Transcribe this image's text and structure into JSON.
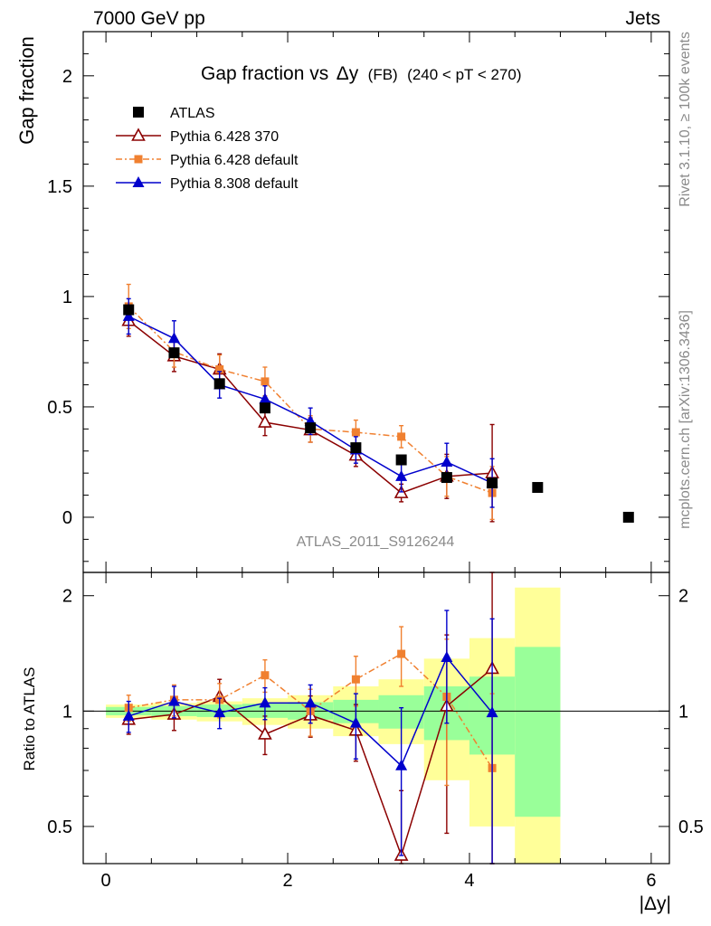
{
  "header": {
    "left": "7000 GeV pp",
    "right": "Jets"
  },
  "side_text": {
    "rivet": "Rivet 3.1.10, ≥ 100k events",
    "mcplots": "mcplots.cern.ch [arXiv:1306.3436]"
  },
  "watermark": "ATLAS_2011_S9126244",
  "chart_data": {
    "type": "scatter",
    "title_main": "Gap fraction vs",
    "title_delta": "Δy",
    "title_fb": "(FB)",
    "title_range": "(240 < pT < 270)",
    "ylabel": "Gap fraction",
    "ratio_ylabel": "Ratio to ATLAS",
    "xlabel": "|Δy|",
    "xlim": [
      -0.25,
      6.2
    ],
    "ylim": [
      -0.25,
      2.2
    ],
    "ratio_ylim": [
      0.4,
      2.3
    ],
    "ratio_log": true,
    "x_ticks": [
      "0",
      "2",
      "4",
      "6"
    ],
    "y_ticks": [
      "0",
      "0.5",
      "1",
      "1.5",
      "2"
    ],
    "ratio_ticks": [
      "0.5",
      "1",
      "2"
    ],
    "legend_position": "top-left",
    "x": [
      0.25,
      0.75,
      1.25,
      1.75,
      2.25,
      2.75,
      3.25,
      3.75,
      4.25,
      4.75,
      5.75
    ],
    "series": [
      {
        "name": "ATLAS",
        "color": "#000000",
        "marker": "square",
        "values": [
          0.94,
          0.745,
          0.605,
          0.495,
          0.405,
          0.315,
          0.26,
          0.18,
          0.155,
          0.135,
          0.0
        ]
      },
      {
        "name": "Pythia 6.428 370",
        "color": "#8b0000",
        "marker": "triangle-open",
        "values": [
          0.89,
          0.73,
          0.67,
          0.43,
          0.395,
          0.28,
          0.11,
          0.185,
          0.2
        ],
        "errors": [
          0.07,
          0.07,
          0.07,
          0.06,
          0.055,
          0.05,
          0.04,
          0.1,
          0.22
        ],
        "ratio": [
          0.95,
          0.98,
          1.09,
          0.87,
          0.975,
          0.89,
          0.42,
          1.03,
          1.29
        ],
        "ratio_errors": [
          0.08,
          0.09,
          0.12,
          0.1,
          0.12,
          0.15,
          0.2,
          0.55,
          1.1
        ]
      },
      {
        "name": "Pythia 6.428 default",
        "color": "#f08030",
        "marker": "square-small",
        "values": [
          0.955,
          0.75,
          0.67,
          0.615,
          0.4,
          0.385,
          0.365,
          0.185,
          0.11
        ],
        "errors": [
          0.1,
          0.07,
          0.065,
          0.065,
          0.06,
          0.055,
          0.05,
          0.09,
          0.12
        ],
        "ratio": [
          1.02,
          1.07,
          1.07,
          1.24,
          1.0,
          1.21,
          1.41,
          1.09,
          0.71
        ],
        "ratio_errors": [
          0.08,
          0.1,
          0.11,
          0.12,
          0.14,
          0.18,
          0.25,
          0.45,
          0.4
        ]
      },
      {
        "name": "Pythia 8.308 default",
        "color": "#0000cc",
        "marker": "triangle",
        "values": [
          0.91,
          0.81,
          0.6,
          0.535,
          0.435,
          0.305,
          0.185,
          0.25,
          0.155
        ],
        "errors": [
          0.08,
          0.08,
          0.06,
          0.06,
          0.06,
          0.06,
          0.07,
          0.085,
          0.11
        ],
        "ratio": [
          0.97,
          1.06,
          0.99,
          1.05,
          1.05,
          0.93,
          0.72,
          1.38,
          0.99
        ],
        "ratio_errors": [
          0.09,
          0.1,
          0.09,
          0.1,
          0.12,
          0.18,
          0.3,
          0.45,
          0.75
        ]
      }
    ],
    "ratio_bands": [
      {
        "x0": 0.0,
        "x1": 0.5,
        "in_lo": 0.975,
        "in_hi": 1.025,
        "out_lo": 0.96,
        "out_hi": 1.04
      },
      {
        "x0": 0.5,
        "x1": 1.0,
        "in_lo": 0.97,
        "in_hi": 1.03,
        "out_lo": 0.95,
        "out_hi": 1.05
      },
      {
        "x0": 1.0,
        "x1": 1.5,
        "in_lo": 0.965,
        "in_hi": 1.04,
        "out_lo": 0.94,
        "out_hi": 1.06
      },
      {
        "x0": 1.5,
        "x1": 2.0,
        "in_lo": 0.96,
        "in_hi": 1.045,
        "out_lo": 0.92,
        "out_hi": 1.08
      },
      {
        "x0": 2.0,
        "x1": 2.5,
        "in_lo": 0.95,
        "in_hi": 1.055,
        "out_lo": 0.9,
        "out_hi": 1.1
      },
      {
        "x0": 2.5,
        "x1": 3.0,
        "in_lo": 0.93,
        "in_hi": 1.07,
        "out_lo": 0.86,
        "out_hi": 1.16
      },
      {
        "x0": 3.0,
        "x1": 3.5,
        "in_lo": 0.9,
        "in_hi": 1.1,
        "out_lo": 0.82,
        "out_hi": 1.21
      },
      {
        "x0": 3.5,
        "x1": 4.0,
        "in_lo": 0.84,
        "in_hi": 1.16,
        "out_lo": 0.66,
        "out_hi": 1.37
      },
      {
        "x0": 4.0,
        "x1": 4.5,
        "in_lo": 0.77,
        "in_hi": 1.23,
        "out_lo": 0.5,
        "out_hi": 1.55
      },
      {
        "x0": 4.5,
        "x1": 5.0,
        "in_lo": 0.53,
        "in_hi": 1.47,
        "out_lo": 0.4,
        "out_hi": 2.1
      }
    ]
  }
}
